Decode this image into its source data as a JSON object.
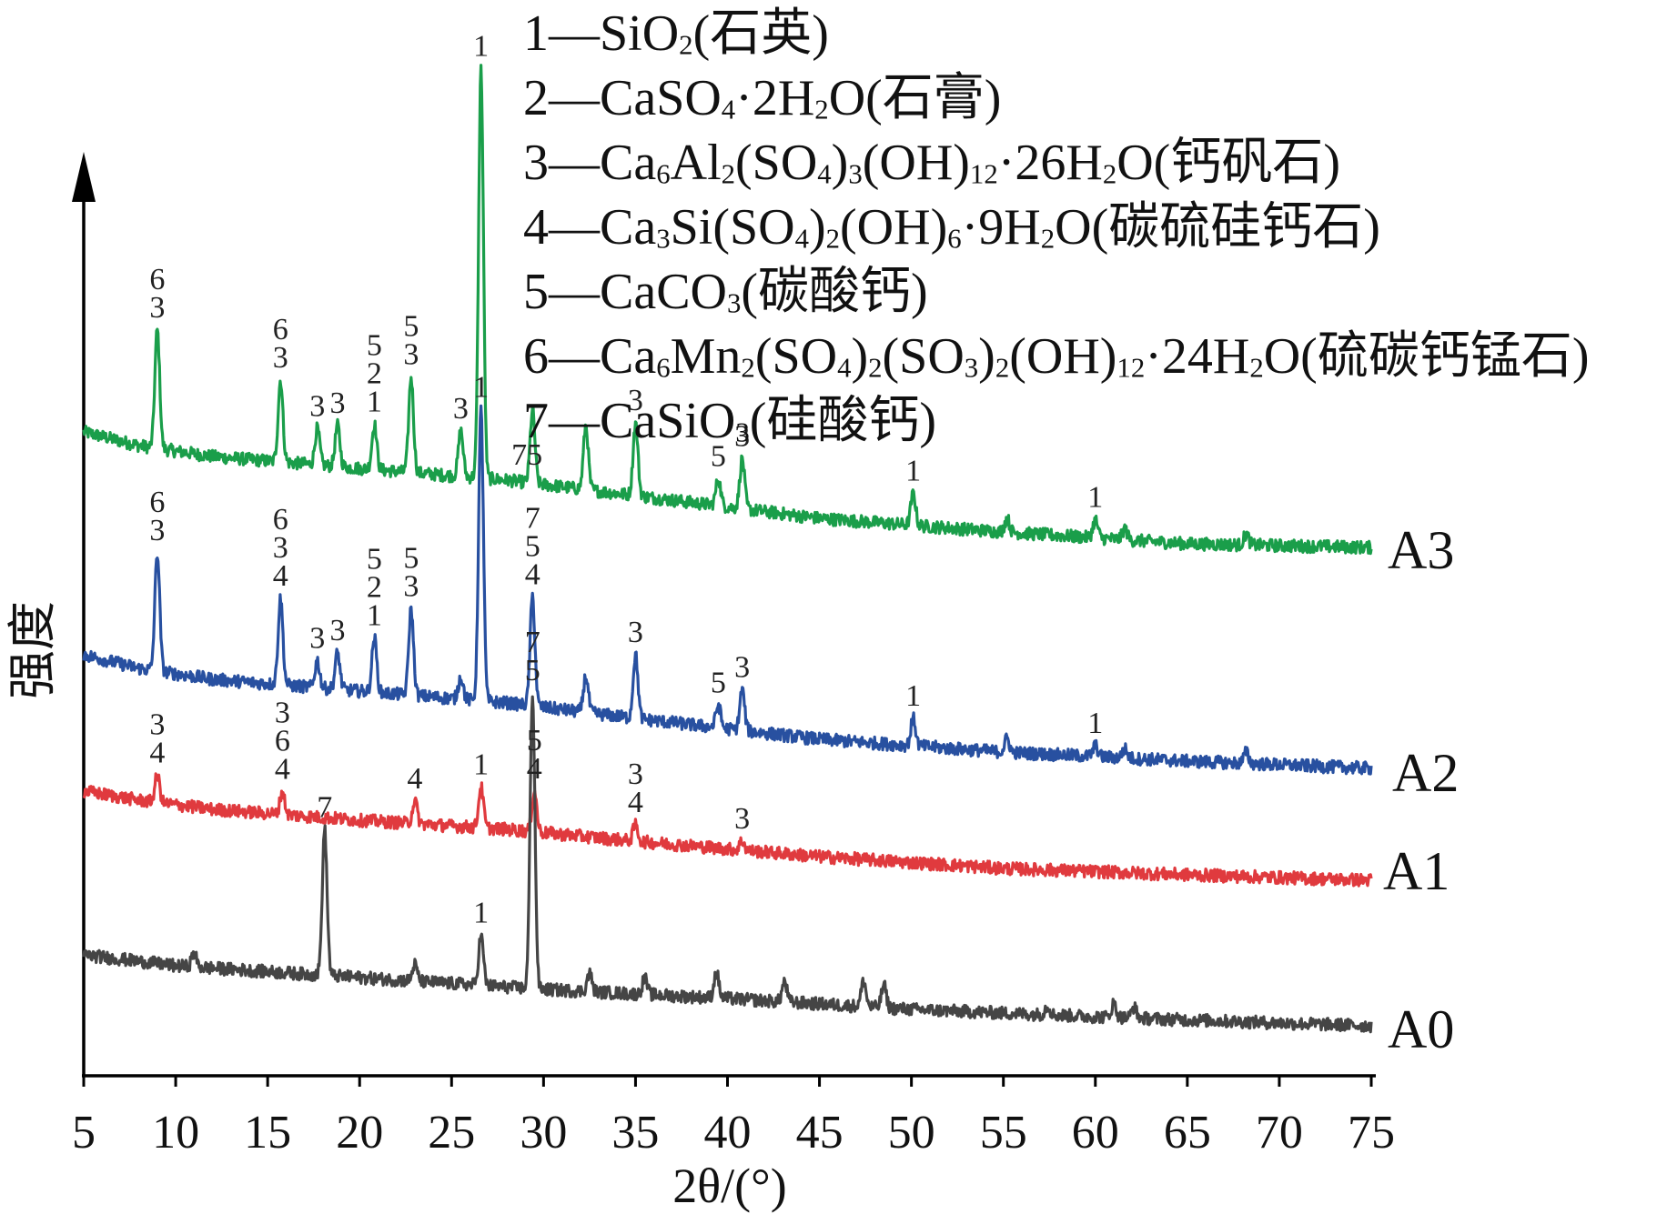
{
  "legend": [
    {
      "key": "1",
      "formula": "SiO_{2}",
      "name": "石英"
    },
    {
      "key": "2",
      "formula": "CaSO_{4}·2H_{2}O",
      "name": "石膏"
    },
    {
      "key": "3",
      "formula": "Ca_{6}Al_{2}(SO_{4})_{3}(OH)_{12}·26H_{2}O",
      "name": "钙矾石"
    },
    {
      "key": "4",
      "formula": "Ca_{3}Si(SO_{4})_{2}(OH)_{6}·9H_{2}O",
      "name": "碳硫硅钙石"
    },
    {
      "key": "5",
      "formula": "CaCO_{3}",
      "name": "碳酸钙"
    },
    {
      "key": "6",
      "formula": "Ca_{6}Mn_{2}(SO_{4})_{2}(SO_{3})_{2}(OH)_{12}·24H_{2}O",
      "name": "硫碳钙锰石"
    },
    {
      "key": "7",
      "formula": "CaSiO_{3}",
      "name": "硅酸钙"
    }
  ],
  "chart_data": {
    "type": "line",
    "xlabel": "2θ/(°)",
    "ylabel": "强度",
    "xlim": [
      5,
      75
    ],
    "xticks": [
      5,
      10,
      15,
      20,
      25,
      30,
      35,
      40,
      45,
      50,
      55,
      60,
      65,
      70,
      75
    ],
    "grid": false,
    "y_ticks_shown": false,
    "series": [
      {
        "name": "A3",
        "color": "#1a9e4a",
        "baseline": [
          [
            5,
            165
          ],
          [
            8,
            150
          ],
          [
            12,
            138
          ],
          [
            20,
            125
          ],
          [
            28,
            112
          ],
          [
            35,
            95
          ],
          [
            45,
            70
          ],
          [
            55,
            55
          ],
          [
            65,
            42
          ],
          [
            75,
            38
          ]
        ],
        "peaks": [
          [
            9.0,
            130
          ],
          [
            15.7,
            90
          ],
          [
            17.7,
            40
          ],
          [
            18.8,
            45
          ],
          [
            20.8,
            50
          ],
          [
            22.8,
            105
          ],
          [
            25.5,
            50
          ],
          [
            26.6,
            450
          ],
          [
            29.4,
            80
          ],
          [
            32.3,
            70
          ],
          [
            35.0,
            80
          ],
          [
            39.5,
            30
          ],
          [
            40.8,
            55
          ],
          [
            50.1,
            35
          ],
          [
            55.2,
            15
          ],
          [
            60.0,
            20
          ],
          [
            61.6,
            12
          ],
          [
            68.2,
            12
          ]
        ],
        "peak_labels": [
          {
            "x": 9.0,
            "lines": [
              "6",
              "3"
            ]
          },
          {
            "x": 15.7,
            "lines": [
              "6",
              "3"
            ]
          },
          {
            "x": 17.7,
            "lines": [
              "3"
            ]
          },
          {
            "x": 18.8,
            "lines": [
              "3"
            ]
          },
          {
            "x": 20.8,
            "lines": [
              "5",
              "2",
              "1"
            ]
          },
          {
            "x": 22.8,
            "lines": [
              "5",
              "3"
            ]
          },
          {
            "x": 25.5,
            "lines": [
              "3"
            ]
          },
          {
            "x": 26.6,
            "lines": [
              "1"
            ]
          },
          {
            "x": 29.1,
            "lines": [
              "75"
            ]
          },
          {
            "x": 35.0,
            "lines": [
              "3"
            ]
          },
          {
            "x": 39.5,
            "lines": [
              "5"
            ]
          },
          {
            "x": 40.8,
            "lines": [
              "3"
            ]
          },
          {
            "x": 50.1,
            "lines": [
              "1"
            ]
          },
          {
            "x": 60.0,
            "lines": [
              "1"
            ]
          }
        ]
      },
      {
        "name": "A2",
        "color": "#2850a0",
        "baseline": [
          [
            5,
            155
          ],
          [
            8,
            140
          ],
          [
            12,
            128
          ],
          [
            20,
            115
          ],
          [
            28,
            102
          ],
          [
            35,
            85
          ],
          [
            45,
            62
          ],
          [
            55,
            48
          ],
          [
            65,
            38
          ],
          [
            75,
            30
          ]
        ],
        "peaks": [
          [
            9.0,
            130
          ],
          [
            15.7,
            95
          ],
          [
            17.7,
            30
          ],
          [
            18.8,
            40
          ],
          [
            20.8,
            60
          ],
          [
            22.8,
            95
          ],
          [
            25.5,
            25
          ],
          [
            26.6,
            320
          ],
          [
            29.4,
            120
          ],
          [
            32.3,
            40
          ],
          [
            35.0,
            70
          ],
          [
            39.5,
            25
          ],
          [
            40.8,
            45
          ],
          [
            50.1,
            30
          ],
          [
            55.2,
            15
          ],
          [
            60.0,
            12
          ],
          [
            61.6,
            10
          ],
          [
            68.2,
            12
          ]
        ],
        "peak_labels": [
          {
            "x": 9.0,
            "lines": [
              "6",
              "3"
            ]
          },
          {
            "x": 15.7,
            "lines": [
              "6",
              "3",
              "4"
            ]
          },
          {
            "x": 17.7,
            "lines": [
              "3"
            ]
          },
          {
            "x": 18.8,
            "lines": [
              "3"
            ]
          },
          {
            "x": 20.8,
            "lines": [
              "5",
              "2",
              "1"
            ]
          },
          {
            "x": 22.8,
            "lines": [
              "5",
              "3"
            ]
          },
          {
            "x": 26.6,
            "lines": [
              "1"
            ]
          },
          {
            "x": 29.4,
            "lines": [
              "7",
              "5",
              "4"
            ]
          },
          {
            "x": 35.0,
            "lines": [
              "3"
            ]
          },
          {
            "x": 39.5,
            "lines": [
              "5"
            ]
          },
          {
            "x": 40.8,
            "lines": [
              "3"
            ]
          },
          {
            "x": 50.1,
            "lines": [
              "1"
            ]
          },
          {
            "x": 60.0,
            "lines": [
              "1"
            ]
          }
        ]
      },
      {
        "name": "A1",
        "color": "#e03a3e",
        "baseline": [
          [
            5,
            110
          ],
          [
            8,
            100
          ],
          [
            12,
            90
          ],
          [
            20,
            78
          ],
          [
            28,
            68
          ],
          [
            35,
            55
          ],
          [
            45,
            38
          ],
          [
            55,
            25
          ],
          [
            65,
            18
          ],
          [
            75,
            12
          ]
        ],
        "peaks": [
          [
            9.0,
            30
          ],
          [
            15.8,
            25
          ],
          [
            23.0,
            25
          ],
          [
            26.6,
            45
          ],
          [
            29.5,
            45
          ],
          [
            35.0,
            18
          ],
          [
            40.8,
            10
          ]
        ],
        "peak_labels": [
          {
            "x": 9.0,
            "lines": [
              "3",
              "4"
            ]
          },
          {
            "x": 15.8,
            "lines": [
              "3",
              "6",
              "4"
            ]
          },
          {
            "x": 23.0,
            "lines": [
              "4"
            ]
          },
          {
            "x": 26.6,
            "lines": [
              "1"
            ]
          },
          {
            "x": 29.5,
            "lines": [
              "5",
              "4"
            ]
          },
          {
            "x": 35.0,
            "lines": [
              "3",
              "4"
            ]
          },
          {
            "x": 40.8,
            "lines": [
              "3"
            ]
          }
        ]
      },
      {
        "name": "A0",
        "color": "#454545",
        "baseline": [
          [
            5,
            100
          ],
          [
            10,
            88
          ],
          [
            20,
            75
          ],
          [
            30,
            62
          ],
          [
            40,
            52
          ],
          [
            50,
            40
          ],
          [
            60,
            32
          ],
          [
            70,
            25
          ],
          [
            75,
            22
          ]
        ],
        "peaks": [
          [
            11.0,
            15
          ],
          [
            18.1,
            160
          ],
          [
            23.0,
            18
          ],
          [
            26.6,
            55
          ],
          [
            29.4,
            325
          ],
          [
            32.5,
            20
          ],
          [
            35.5,
            18
          ],
          [
            39.4,
            28
          ],
          [
            43.1,
            22
          ],
          [
            47.4,
            28
          ],
          [
            48.5,
            25
          ],
          [
            57.4,
            10
          ],
          [
            61.0,
            15
          ],
          [
            62.1,
            12
          ]
        ],
        "peak_labels": [
          {
            "x": 18.1,
            "lines": [
              "7"
            ]
          },
          {
            "x": 26.6,
            "lines": [
              "1"
            ]
          },
          {
            "x": 29.4,
            "lines": [
              "7",
              "5"
            ]
          }
        ]
      }
    ]
  }
}
